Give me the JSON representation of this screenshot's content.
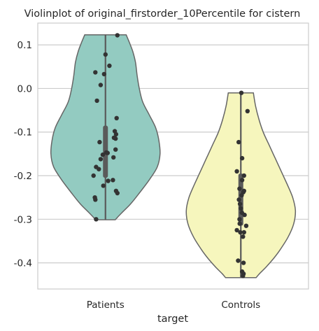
{
  "chart_data": {
    "type": "violin",
    "title": "Violinplot of original_firstorder_10Percentile for cistern",
    "xlabel": "target",
    "ylabel": "",
    "categories": [
      "Patients",
      "Controls"
    ],
    "ylim": [
      -0.46,
      0.15
    ],
    "yticks": [
      0.1,
      0.0,
      -0.1,
      -0.2,
      -0.3,
      -0.4
    ],
    "ytick_labels": [
      "0.1",
      "0.0",
      "-0.1",
      "-0.2",
      "-0.3",
      "-0.4"
    ],
    "grid": "horizontal",
    "colors": {
      "violins": [
        "#93cbc1",
        "#f6f6bd"
      ],
      "outline": "#666666",
      "points": "#333333",
      "box": "#5a5a5a",
      "grid": "#cccccc",
      "spine": "#cccccc"
    },
    "violins": [
      {
        "name": "Patients",
        "range": [
          -0.301,
          0.123
        ],
        "box": {
          "q1": -0.205,
          "median": -0.135,
          "q3": -0.085
        },
        "density": [
          [
            0.123,
            0.38
          ],
          [
            0.105,
            0.44
          ],
          [
            0.085,
            0.5
          ],
          [
            0.06,
            0.55
          ],
          [
            0.03,
            0.58
          ],
          [
            0.0,
            0.62
          ],
          [
            -0.03,
            0.68
          ],
          [
            -0.06,
            0.8
          ],
          [
            -0.09,
            0.92
          ],
          [
            -0.12,
            0.98
          ],
          [
            -0.15,
            1.0
          ],
          [
            -0.18,
            0.95
          ],
          [
            -0.21,
            0.8
          ],
          [
            -0.24,
            0.62
          ],
          [
            -0.265,
            0.46
          ],
          [
            -0.285,
            0.3
          ],
          [
            -0.301,
            0.18
          ]
        ],
        "points": [
          [
            0.122,
            0.45
          ],
          [
            0.078,
            0.0
          ],
          [
            0.052,
            0.15
          ],
          [
            0.037,
            -0.38
          ],
          [
            0.033,
            -0.05
          ],
          [
            0.008,
            -0.18
          ],
          [
            -0.028,
            -0.32
          ],
          [
            -0.068,
            0.42
          ],
          [
            -0.098,
            0.35
          ],
          [
            -0.105,
            0.4
          ],
          [
            -0.113,
            0.32
          ],
          [
            -0.115,
            0.38
          ],
          [
            -0.123,
            -0.22
          ],
          [
            -0.14,
            0.38
          ],
          [
            -0.147,
            0.03
          ],
          [
            -0.148,
            0.08
          ],
          [
            -0.152,
            -0.1
          ],
          [
            -0.158,
            0.3
          ],
          [
            -0.162,
            -0.18
          ],
          [
            -0.18,
            -0.35
          ],
          [
            -0.185,
            -0.25
          ],
          [
            -0.2,
            -0.45
          ],
          [
            -0.21,
            0.28
          ],
          [
            -0.223,
            -0.08
          ],
          [
            -0.235,
            0.4
          ],
          [
            -0.24,
            0.45
          ],
          [
            -0.25,
            -0.4
          ],
          [
            -0.255,
            -0.38
          ],
          [
            -0.3,
            -0.35
          ],
          [
            -0.212,
            0.1
          ]
        ]
      },
      {
        "name": "Controls",
        "range": [
          -0.434,
          -0.01
        ],
        "box": {
          "q1": -0.315,
          "median": -0.28,
          "q3": -0.195
        },
        "density": [
          [
            -0.01,
            0.23
          ],
          [
            -0.04,
            0.27
          ],
          [
            -0.07,
            0.33
          ],
          [
            -0.1,
            0.41
          ],
          [
            -0.13,
            0.52
          ],
          [
            -0.16,
            0.63
          ],
          [
            -0.19,
            0.74
          ],
          [
            -0.22,
            0.85
          ],
          [
            -0.25,
            0.95
          ],
          [
            -0.28,
            1.0
          ],
          [
            -0.31,
            0.97
          ],
          [
            -0.34,
            0.87
          ],
          [
            -0.37,
            0.72
          ],
          [
            -0.39,
            0.6
          ],
          [
            -0.41,
            0.46
          ],
          [
            -0.425,
            0.34
          ],
          [
            -0.434,
            0.28
          ]
        ],
        "points": [
          [
            -0.01,
            0.02
          ],
          [
            -0.052,
            0.25
          ],
          [
            -0.123,
            -0.08
          ],
          [
            -0.16,
            0.05
          ],
          [
            -0.19,
            -0.15
          ],
          [
            -0.2,
            0.12
          ],
          [
            -0.21,
            0.05
          ],
          [
            -0.23,
            -0.05
          ],
          [
            -0.235,
            0.12
          ],
          [
            -0.238,
            0.09
          ],
          [
            -0.255,
            -0.07
          ],
          [
            -0.265,
            -0.03
          ],
          [
            -0.275,
            0.0
          ],
          [
            -0.285,
            0.04
          ],
          [
            -0.29,
            0.14
          ],
          [
            -0.3,
            -0.05
          ],
          [
            -0.31,
            -0.04
          ],
          [
            -0.315,
            0.2
          ],
          [
            -0.325,
            -0.15
          ],
          [
            -0.33,
            -0.02
          ],
          [
            -0.33,
            0.12
          ],
          [
            -0.34,
            0.08
          ],
          [
            -0.395,
            -0.1
          ],
          [
            -0.4,
            0.1
          ],
          [
            -0.42,
            0.05
          ],
          [
            -0.425,
            0.1
          ],
          [
            -0.43,
            0.08
          ],
          [
            -0.245,
            0.03
          ]
        ]
      }
    ]
  }
}
